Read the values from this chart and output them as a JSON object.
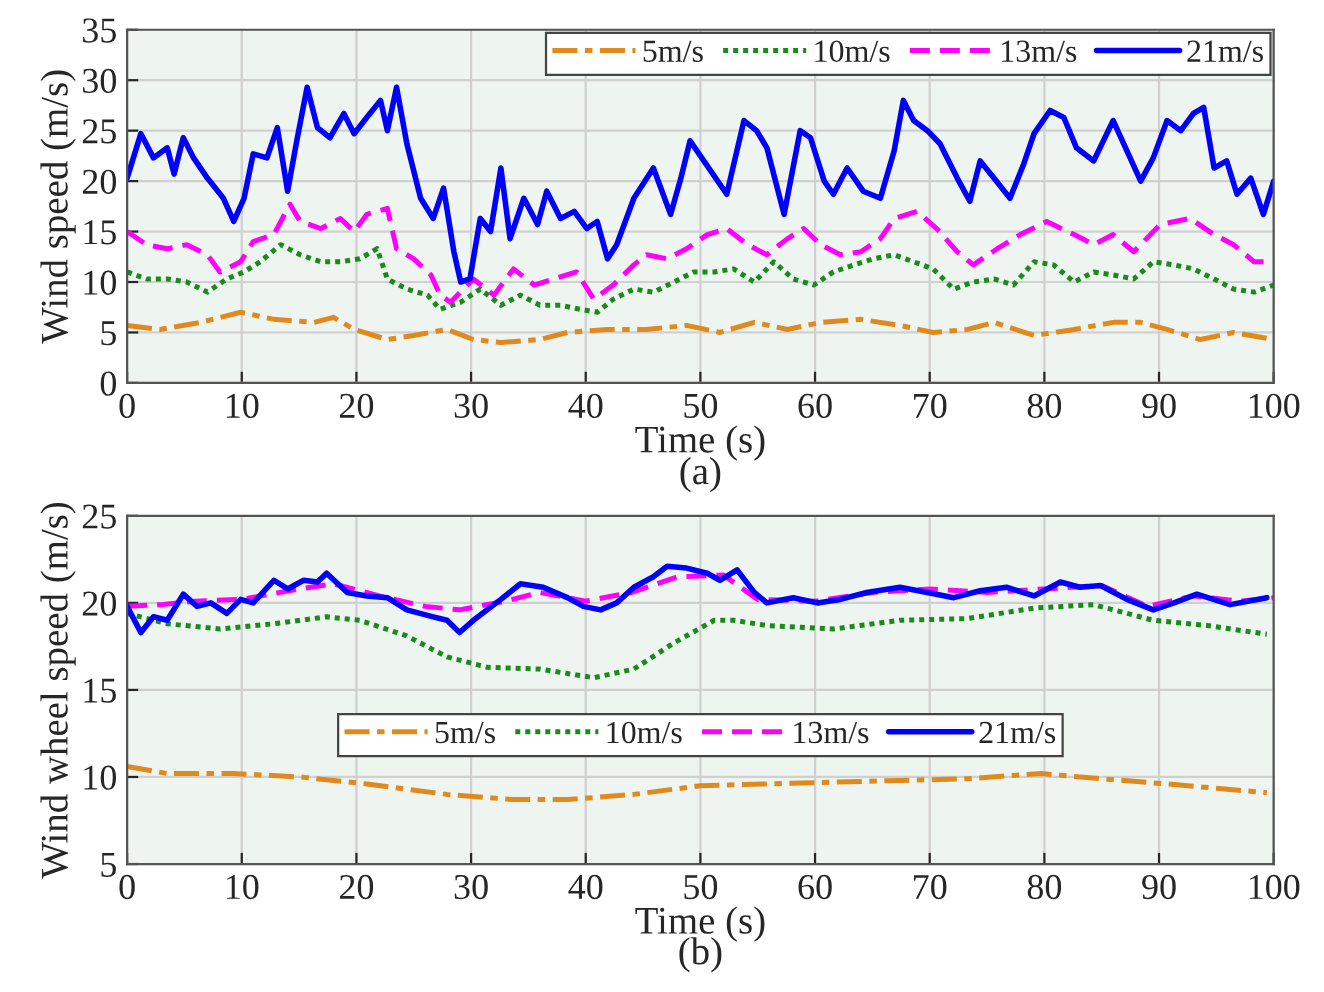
{
  "chart_data": [
    {
      "type": "line",
      "xlabel": "Time (s)",
      "ylabel": "Wind speed (m/s)",
      "annotations": [
        "(a)"
      ],
      "xlim": [
        0,
        100
      ],
      "xticks": [
        0,
        10,
        20,
        30,
        40,
        50,
        60,
        70,
        80,
        90,
        100
      ],
      "ylim": [
        0,
        35
      ],
      "yticks": [
        0,
        5,
        10,
        15,
        20,
        25,
        30,
        35
      ],
      "grid": true,
      "legend": "top right",
      "series": [
        {
          "name": "5m/s",
          "color": "#e08a1e",
          "line_style": "dashdot",
          "x": [
            0,
            2.9,
            6.4,
            9.9,
            12.8,
            16.3,
            18,
            19.8,
            22.7,
            25,
            27.9,
            30.2,
            32.6,
            36,
            38.4,
            41.9,
            45.3,
            48.8,
            51.7,
            54.7,
            57.6,
            60.5,
            64,
            67.4,
            70.3,
            73.3,
            75.6,
            79.1,
            82.6,
            86,
            88.4,
            90.7,
            93.6,
            96.5,
            100
          ],
          "values": [
            5.7,
            5.3,
            6,
            7,
            6.3,
            6,
            6.5,
            5.3,
            4.3,
            4.7,
            5.3,
            4.3,
            4,
            4.3,
            5,
            5.3,
            5.3,
            5.7,
            5,
            6,
            5.3,
            6,
            6.3,
            5.7,
            5,
            5.3,
            6,
            4.7,
            5.3,
            6,
            6,
            5.3,
            4.3,
            5,
            4.3
          ]
        },
        {
          "name": "10m/s",
          "color": "#1a8a1a",
          "line_style": "dotted",
          "x": [
            0,
            1.7,
            3.5,
            5.2,
            7,
            8.7,
            10.2,
            11.6,
            13.4,
            15.1,
            16.9,
            18.6,
            20.3,
            21.8,
            22.7,
            24.4,
            26.2,
            27.3,
            29.1,
            30.8,
            32.6,
            34.3,
            36,
            37.8,
            39.5,
            41,
            42.4,
            44.2,
            45.9,
            47.7,
            49.4,
            51.2,
            52.9,
            54.7,
            56.4,
            58.1,
            59.9,
            61.6,
            63.4,
            65.1,
            66.9,
            68.6,
            70.3,
            72.1,
            73.8,
            75.6,
            77.3,
            79.1,
            80.8,
            82.6,
            84.3,
            86,
            87.8,
            89.5,
            91.3,
            93,
            94.8,
            96.5,
            98.3,
            100
          ],
          "values": [
            11,
            10.3,
            10.3,
            10,
            9,
            10.3,
            11,
            12,
            13.7,
            12.7,
            12,
            12,
            12.3,
            13.3,
            10.3,
            9.3,
            8.7,
            7.3,
            8,
            9.3,
            7.7,
            8.7,
            7.7,
            7.7,
            7.3,
            7,
            8.3,
            9.3,
            9,
            10,
            11,
            11,
            11.3,
            10,
            12,
            10.3,
            9.7,
            11,
            11.7,
            12.3,
            12.7,
            12,
            11.3,
            9.3,
            10,
            10.3,
            9.7,
            12,
            11.7,
            10,
            11,
            10.7,
            10.3,
            12,
            11.7,
            11.3,
            10.3,
            9.3,
            9,
            9.7
          ]
        },
        {
          "name": "13m/s",
          "color": "#ff00ff",
          "line_style": "dashed",
          "x": [
            0,
            1.7,
            3.5,
            5.2,
            7,
            8.1,
            9.9,
            11,
            12.8,
            14.2,
            15.1,
            16.9,
            18.6,
            19.8,
            20.9,
            22.7,
            23.5,
            25,
            26.5,
            27.3,
            28.2,
            30.2,
            32,
            33.7,
            35.5,
            37.2,
            39.2,
            40.7,
            42.4,
            44.2,
            45.3,
            47.1,
            48.8,
            50.6,
            52.3,
            54.1,
            55.8,
            57.6,
            59,
            60.5,
            62.2,
            64,
            65.7,
            66.9,
            68.9,
            70.6,
            72.4,
            73.8,
            75.9,
            77.9,
            80.2,
            82.6,
            84.3,
            86,
            87.8,
            90.1,
            92.7,
            94.8,
            96.5,
            98.3,
            100
          ],
          "values": [
            15,
            13.7,
            13.3,
            13.7,
            12.7,
            11,
            12,
            14,
            14.7,
            17.7,
            16,
            15.3,
            16.3,
            15,
            16.7,
            17.3,
            13.3,
            12.3,
            10.7,
            8.7,
            8,
            10.3,
            8.7,
            11.3,
            9.7,
            10.3,
            11,
            8.3,
            9.7,
            11.7,
            12.7,
            12.3,
            13.3,
            14.7,
            15.3,
            13.7,
            12.7,
            14.3,
            15.3,
            13.7,
            12.7,
            13,
            14.3,
            16.3,
            17,
            15.3,
            13,
            11.7,
            13.3,
            14.7,
            16,
            14.7,
            13.7,
            14.7,
            13,
            15.7,
            16.3,
            14.7,
            13.7,
            12,
            12
          ]
        },
        {
          "name": "21m/s",
          "color": "#0000ff",
          "line_style": "solid",
          "x": [
            0,
            1.2,
            2.3,
            3.5,
            4.1,
            4.9,
            5.8,
            7,
            8.4,
            9.3,
            10.2,
            11,
            12.2,
            13.1,
            14,
            14.8,
            15.7,
            16.6,
            17.7,
            18.9,
            19.8,
            20.9,
            22.1,
            22.7,
            23.5,
            24.4,
            25.6,
            26.7,
            27.6,
            28.5,
            29.1,
            29.9,
            30.8,
            31.7,
            32.6,
            33.4,
            34.6,
            35.8,
            36.6,
            37.8,
            39,
            40.1,
            41,
            41.9,
            42.7,
            44.2,
            45.9,
            47.4,
            48.3,
            49.1,
            50.3,
            52.3,
            53.8,
            54.9,
            55.8,
            57.3,
            58.7,
            59.6,
            60.8,
            61.6,
            62.8,
            64.2,
            65.7,
            66.9,
            67.7,
            68.6,
            69.8,
            70.9,
            72.4,
            73.5,
            74.4,
            75.6,
            77,
            78.2,
            79.1,
            80.5,
            81.7,
            82.8,
            84.3,
            86,
            87.2,
            88.4,
            89.5,
            90.7,
            91.9,
            93,
            93.9,
            94.8,
            95.9,
            96.8,
            98,
            99.1,
            100
          ],
          "values": [
            20.3,
            24.7,
            22.3,
            23.3,
            20.7,
            24.3,
            22.3,
            20.3,
            18.3,
            16,
            18.3,
            22.7,
            22.3,
            25.3,
            19,
            24,
            29.3,
            25.3,
            24.3,
            26.7,
            24.7,
            26.3,
            28,
            25,
            29.3,
            23.7,
            18.3,
            16.3,
            19.3,
            13,
            10,
            10.3,
            16.3,
            15,
            21.3,
            14.3,
            18.3,
            15.7,
            19,
            16.3,
            17,
            15.3,
            16,
            12.3,
            13.7,
            18.3,
            21.3,
            16.7,
            20.3,
            24,
            22,
            18.7,
            26,
            25,
            23.3,
            16.7,
            25,
            24.3,
            20,
            18.7,
            21.3,
            19,
            18.3,
            23,
            28,
            26,
            25,
            23.7,
            20.3,
            18,
            22,
            20.3,
            18.3,
            21.7,
            24.7,
            27,
            26.3,
            23.3,
            22,
            26,
            23,
            20,
            22.3,
            26,
            25,
            26.7,
            27.3,
            21.3,
            22,
            18.7,
            20.3,
            16.7,
            20
          ]
        }
      ]
    },
    {
      "type": "line",
      "xlabel": "Time (s)",
      "ylabel": "Wind wheel speed (m/s)",
      "annotations": [
        "(b)"
      ],
      "xlim": [
        0,
        100
      ],
      "xticks": [
        0,
        10,
        20,
        30,
        40,
        50,
        60,
        70,
        80,
        90,
        100
      ],
      "ylim": [
        5,
        25
      ],
      "yticks": [
        5,
        10,
        15,
        20,
        25
      ],
      "grid": true,
      "legend": "center",
      "series": [
        {
          "name": "5m/s",
          "color": "#e08a1e",
          "line_style": "dashdot",
          "x": [
            0,
            3.5,
            9.3,
            15.1,
            20.9,
            27.9,
            33.7,
            38.4,
            44.2,
            50,
            55.8,
            61.6,
            67.4,
            73.3,
            79.7,
            84.9,
            90.7,
            99.4
          ],
          "values": [
            10.6,
            10.2,
            10.2,
            10,
            9.6,
            9,
            8.7,
            8.7,
            9,
            9.5,
            9.6,
            9.7,
            9.8,
            9.9,
            10.2,
            9.9,
            9.6,
            9.1
          ]
        },
        {
          "name": "10m/s",
          "color": "#1a8a1a",
          "line_style": "dotted",
          "x": [
            0,
            3.5,
            8.1,
            12.8,
            17.4,
            20.3,
            24.4,
            27.9,
            31.4,
            36,
            40.7,
            44.2,
            47.7,
            51.2,
            52.9,
            55.8,
            61.6,
            67.4,
            73.3,
            79.1,
            84.3,
            89.5,
            94.2,
            99.4
          ],
          "values": [
            19.4,
            18.8,
            18.5,
            18.8,
            19.2,
            19,
            18.1,
            16.9,
            16.3,
            16.2,
            15.7,
            16.2,
            17.7,
            19,
            19,
            18.7,
            18.5,
            19,
            19.1,
            19.7,
            19.9,
            19,
            18.7,
            18.2
          ]
        },
        {
          "name": "13m/s",
          "color": "#ff00ff",
          "line_style": "dashed",
          "x": [
            0,
            3,
            6,
            10,
            15,
            18,
            22,
            26,
            29,
            33,
            36,
            40,
            44,
            48,
            52,
            55,
            60,
            65,
            70,
            75,
            80,
            85,
            89,
            93,
            97,
            100
          ],
          "values": [
            19.8,
            19.9,
            20.1,
            20.2,
            20.8,
            21.1,
            20.4,
            19.8,
            19.6,
            20.1,
            20.6,
            20.1,
            20.6,
            21.5,
            21.6,
            20.2,
            20.1,
            20.6,
            20.8,
            20.6,
            20.8,
            21,
            19.8,
            20.4,
            20.1,
            20.3
          ]
        },
        {
          "name": "21m/s",
          "color": "#0000ff",
          "line_style": "solid",
          "x": [
            0,
            1.2,
            2.3,
            3.5,
            4.9,
            6.1,
            7.3,
            8.7,
            9.9,
            11,
            12.8,
            14,
            15.4,
            16.6,
            17.4,
            19.2,
            20.9,
            22.7,
            24.4,
            26.7,
            27.9,
            29,
            30.2,
            32.6,
            34.3,
            36.3,
            38.4,
            39.8,
            41.3,
            42.7,
            44.2,
            45.9,
            47.1,
            48.8,
            50.6,
            51.7,
            53.2,
            54.7,
            55.8,
            58.1,
            60.2,
            62.2,
            64.5,
            67.4,
            69.8,
            72.1,
            74.4,
            76.7,
            79.1,
            81.4,
            83.1,
            84.9,
            87.2,
            89.5,
            91.3,
            93.3,
            96.2,
            99.4
          ],
          "values": [
            19.8,
            18.3,
            19.2,
            19,
            20.5,
            19.8,
            20,
            19.4,
            20.2,
            20,
            21.3,
            20.8,
            21.3,
            21.2,
            21.7,
            20.6,
            20.4,
            20.3,
            19.6,
            19.2,
            19,
            18.3,
            19,
            20.2,
            21.1,
            20.9,
            20.3,
            19.8,
            19.6,
            20,
            20.9,
            21.5,
            22.1,
            22,
            21.7,
            21.3,
            21.9,
            20.6,
            20,
            20.3,
            20,
            20.2,
            20.6,
            20.9,
            20.6,
            20.3,
            20.7,
            20.9,
            20.4,
            21.2,
            20.9,
            21,
            20.2,
            19.6,
            20,
            20.5,
            19.9,
            20.3
          ]
        }
      ]
    }
  ]
}
